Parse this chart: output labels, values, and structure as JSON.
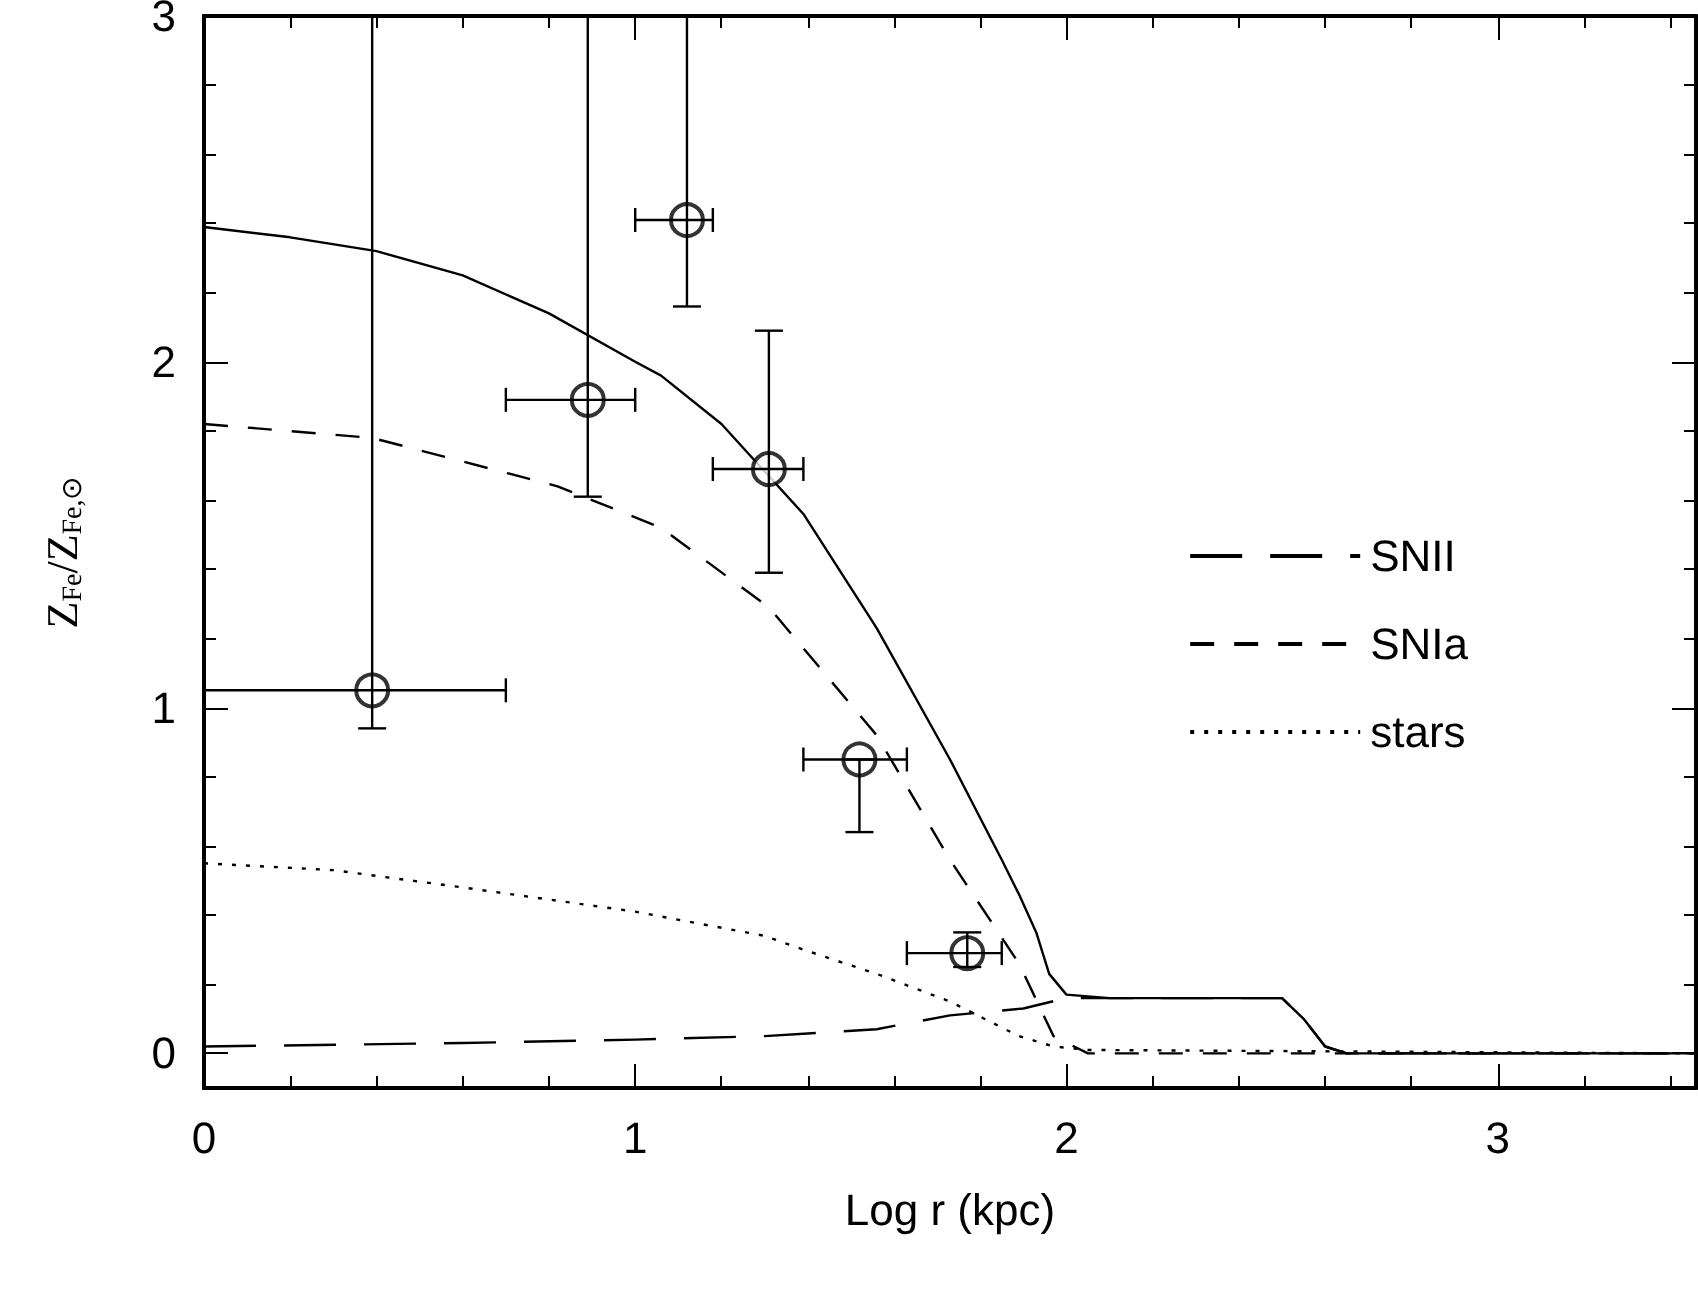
{
  "chart_data": {
    "type": "line",
    "xlabel": "Log r (kpc)",
    "ylabel": "Z$_{Fe}$/Z$_{Fe,⊙}$",
    "xlim": [
      0,
      3.46
    ],
    "ylim": [
      -0.1,
      3
    ],
    "xticks": [
      0,
      {
        "value": 0.2,
        "label": null
      },
      {
        "value": 0.4,
        "label": null
      },
      {
        "value": 0.6,
        "label": null
      },
      {
        "value": 0.8,
        "label": null
      },
      1,
      {
        "value": 1.2,
        "label": null
      },
      {
        "value": 1.4,
        "label": null
      },
      {
        "value": 1.6,
        "label": null
      },
      {
        "value": 1.8,
        "label": null
      },
      2,
      {
        "value": 2.2,
        "label": null
      },
      {
        "value": 2.4,
        "label": null
      },
      {
        "value": 2.6,
        "label": null
      },
      {
        "value": 2.8,
        "label": null
      },
      3,
      {
        "value": 3.2,
        "label": null
      },
      {
        "value": 3.4,
        "label": null
      }
    ],
    "yticks": [
      0,
      {
        "value": 0.2,
        "label": null
      },
      {
        "value": 0.4,
        "label": null
      },
      {
        "value": 0.6,
        "label": null
      },
      {
        "value": 0.8,
        "label": null
      },
      1,
      {
        "value": 1.2,
        "label": null
      },
      {
        "value": 1.4,
        "label": null
      },
      {
        "value": 1.6,
        "label": null
      },
      {
        "value": 1.8,
        "label": null
      },
      2,
      {
        "value": 2.2,
        "label": null
      },
      {
        "value": 2.4,
        "label": null
      },
      {
        "value": 2.6,
        "label": null
      },
      {
        "value": 2.8,
        "label": null
      },
      3
    ],
    "grid": false,
    "legend": "right",
    "marker": "none",
    "series": [
      {
        "color": "#000000",
        "line_style": "solid",
        "x": [
          0,
          0.2,
          0.4,
          0.6,
          0.8,
          1.0,
          1.06,
          1.2,
          1.39,
          1.56,
          1.73,
          1.85,
          1.89,
          1.93,
          1.96,
          2.0,
          2.1,
          2.4,
          2.5,
          2.55,
          2.6,
          2.65,
          3.46
        ],
        "values": [
          2.39,
          2.36,
          2.32,
          2.25,
          2.14,
          2.0,
          1.96,
          1.82,
          1.56,
          1.23,
          0.85,
          0.56,
          0.46,
          0.35,
          0.23,
          0.17,
          0.16,
          0.16,
          0.16,
          0.1,
          0.02,
          0,
          0
        ]
      },
      {
        "name": "SNII",
        "color": "#000000",
        "line_style": "dashed",
        "x": [
          0,
          0.6,
          1.0,
          1.3,
          1.56,
          1.73,
          1.9,
          2.0,
          2.5,
          2.55,
          2.6,
          2.65,
          3.46
        ],
        "values": [
          0.02,
          0.03,
          0.04,
          0.05,
          0.07,
          0.11,
          0.13,
          0.16,
          0.16,
          0.1,
          0.02,
          0,
          0
        ]
      },
      {
        "name": "SNIa",
        "color": "#000000",
        "line_style": "dashed",
        "x": [
          0,
          0.39,
          0.82,
          1.06,
          1.31,
          1.56,
          1.73,
          1.89,
          1.97,
          2.05,
          3.46
        ],
        "values": [
          1.82,
          1.78,
          1.64,
          1.52,
          1.29,
          0.92,
          0.56,
          0.26,
          0.05,
          0,
          0
        ]
      },
      {
        "name": "stars",
        "color": "#000000",
        "line_style": "dotted",
        "x": [
          0,
          0.3,
          0.6,
          1.0,
          1.3,
          1.39,
          1.56,
          1.73,
          1.89,
          1.97,
          2.05,
          3.46
        ],
        "values": [
          0.55,
          0.53,
          0.48,
          0.41,
          0.34,
          0.3,
          0.23,
          0.15,
          0.05,
          0.02,
          0.01,
          0
        ]
      },
      {
        "type": "scatter",
        "marker": "circle",
        "color": "#000000",
        "x": [
          0.39,
          0.89,
          1.12,
          1.31,
          1.52,
          1.77
        ],
        "values": [
          1.05,
          1.89,
          2.41,
          1.69,
          0.85,
          0.29
        ],
        "errors": [
          [
            0.94,
            3
          ],
          [
            1.61,
            3
          ],
          [
            2.16,
            3
          ],
          [
            1.39,
            2.09
          ],
          [
            0.64,
            0.85
          ],
          [
            0.25,
            0.35
          ]
        ],
        "xerrors": [
          [
            0,
            0.7
          ],
          [
            0.7,
            1.0
          ],
          [
            1.0,
            1.18
          ],
          [
            1.18,
            1.39
          ],
          [
            1.39,
            1.63
          ],
          [
            1.63,
            1.85
          ]
        ]
      }
    ]
  }
}
